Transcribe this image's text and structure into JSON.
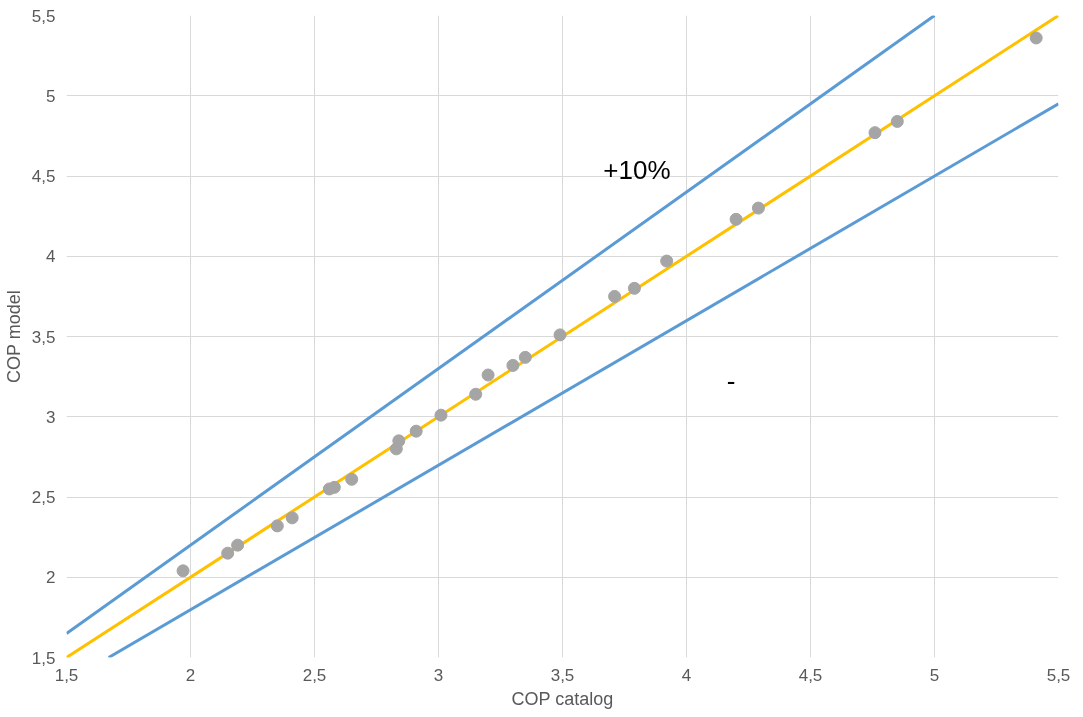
{
  "chart_data": {
    "type": "scatter",
    "xlabel": "COP catalog",
    "ylabel": "COP model",
    "xlim": [
      1.5,
      5.5
    ],
    "ylim": [
      1.5,
      5.5
    ],
    "xticks": [
      {
        "value": 1.5,
        "label": "1,5"
      },
      2,
      {
        "value": 2.5,
        "label": "2,5"
      },
      3,
      {
        "value": 3.5,
        "label": "3,5"
      },
      4,
      {
        "value": 4.5,
        "label": "4,5"
      },
      5,
      {
        "value": 5.5,
        "label": "5,5"
      }
    ],
    "yticks": [
      {
        "value": 1.5,
        "label": "1,5"
      },
      2,
      {
        "value": 2.5,
        "label": "2,5"
      },
      3,
      {
        "value": 3.5,
        "label": "3,5"
      },
      4,
      {
        "value": 4.5,
        "label": "4,5"
      },
      5,
      {
        "value": 5.5,
        "label": "5,5"
      }
    ],
    "grid": true,
    "series": [
      {
        "type": "line",
        "color": "#5b9bd5",
        "x": [
          1.5,
          5.0
        ],
        "values": [
          1.65,
          5.5
        ]
      },
      {
        "type": "line",
        "color": "#5b9bd5",
        "x": [
          1.67,
          5.5
        ],
        "values": [
          1.5,
          4.95
        ]
      },
      {
        "type": "line",
        "color": "#ffc000",
        "x": [
          1.5,
          5.5
        ],
        "values": [
          1.5,
          5.5
        ]
      },
      {
        "color": "#a5a5a5",
        "marker": "circle",
        "x": [
          1.97,
          2.15,
          2.19,
          2.35,
          2.41,
          2.56,
          2.58,
          2.65,
          2.83,
          2.84,
          2.91,
          3.01,
          3.15,
          3.2,
          3.3,
          3.35,
          3.49,
          3.71,
          3.79,
          3.92,
          4.2,
          4.29,
          4.76,
          4.85,
          5.41
        ],
        "values": [
          2.04,
          2.15,
          2.2,
          2.32,
          2.37,
          2.55,
          2.56,
          2.61,
          2.8,
          2.85,
          2.91,
          3.01,
          3.14,
          3.26,
          3.32,
          3.37,
          3.51,
          3.75,
          3.8,
          3.97,
          4.23,
          4.3,
          4.77,
          4.84,
          5.36
        ]
      }
    ],
    "annotations": [
      "+10%",
      "-"
    ]
  }
}
